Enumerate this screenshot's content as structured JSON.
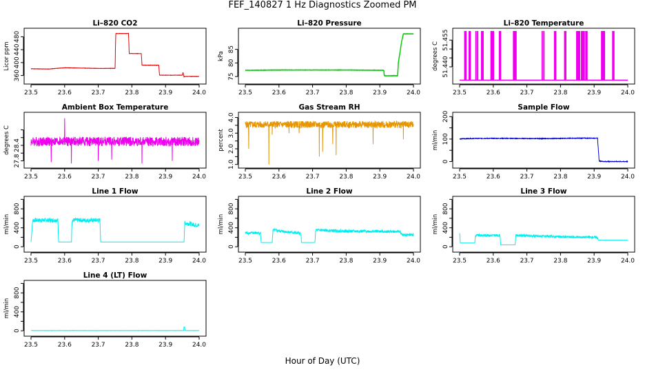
{
  "figure": {
    "title": "FEF_140827  1 Hz Diagnostics Zoomed PM",
    "xlabel": "Hour of Day (UTC)"
  },
  "chart_data": [
    {
      "type": "line",
      "title": "Li–820 CO2",
      "xlabel": "",
      "ylabel": "Licor ppm",
      "xlim": [
        23.5,
        24.0
      ],
      "ylim": [
        340,
        500
      ],
      "xticks": [
        "23.5",
        "23.6",
        "23.7",
        "23.8",
        "23.9",
        "24.0"
      ],
      "yticks": [
        "360",
        "400",
        "440",
        "480"
      ],
      "color": "#dd0000",
      "noise": 0.5,
      "seed": 1,
      "series": [
        {
          "x": [
            23.5,
            23.55,
            23.6,
            23.65,
            23.7,
            23.75,
            23.752,
            23.79,
            23.792,
            23.828,
            23.83,
            23.88,
            23.882,
            23.95,
            23.952,
            23.955,
            23.957,
            24.0
          ],
          "y": [
            381,
            380,
            384,
            383,
            382,
            382,
            490,
            490,
            428,
            428,
            392,
            392,
            361,
            361,
            370,
            356,
            357,
            357
          ]
        }
      ]
    },
    {
      "type": "line",
      "title": "Li–820 Pressure",
      "xlabel": "",
      "ylabel": "kPa",
      "xlim": [
        23.5,
        24.0
      ],
      "ylim": [
        73,
        92
      ],
      "xticks": [
        "23.5",
        "23.6",
        "23.7",
        "23.8",
        "23.9",
        "24.0"
      ],
      "yticks": [
        "75",
        "80",
        "85"
      ],
      "color": "#00cc00",
      "noise": 0.05,
      "seed": 2,
      "series": [
        {
          "x": [
            23.5,
            23.6,
            23.7,
            23.8,
            23.912,
            23.913,
            23.953,
            23.955,
            23.96,
            23.965,
            23.97,
            24.0
          ],
          "y": [
            77.3,
            77.4,
            77.4,
            77.4,
            77.3,
            75.3,
            75.3,
            80.0,
            84.0,
            88.0,
            90.7,
            90.7
          ]
        }
      ]
    },
    {
      "type": "line",
      "title": "Li–820 Temperature",
      "xlabel": "",
      "ylabel": "degrees C",
      "xlim": [
        23.5,
        24.0
      ],
      "ylim": [
        51.4315,
        51.4605
      ],
      "xticks": [
        "23.5",
        "23.6",
        "23.7",
        "23.8",
        "23.9",
        "24.0"
      ],
      "yticks": [
        "51.440",
        "51.455"
      ],
      "yticks_minor": [
        "51.445",
        "51.450"
      ],
      "color": "#ee00ee",
      "noise": 0,
      "seed": 3,
      "base": 51.4325,
      "spike": 51.4598,
      "spikes_x": [
        23.515,
        23.518,
        23.528,
        23.531,
        23.548,
        23.553,
        23.565,
        23.569,
        23.593,
        23.596,
        23.6,
        23.618,
        23.621,
        23.66,
        23.664,
        23.667,
        23.745,
        23.75,
        23.782,
        23.785,
        23.812,
        23.815,
        23.848,
        23.852,
        23.856,
        23.862,
        23.866,
        23.87,
        23.875,
        23.878,
        23.922,
        23.926,
        23.93,
        23.955,
        23.958
      ]
    },
    {
      "type": "line",
      "title": "Ambient Box Temperature",
      "xlabel": "",
      "ylabel": "degrees C",
      "xlim": [
        23.5,
        24.0
      ],
      "ylim": [
        27.6,
        29.6
      ],
      "xticks": [
        "23.5",
        "23.6",
        "23.7",
        "23.8",
        "23.9",
        "24.0"
      ],
      "yticks": [
        "27.8",
        "28.4"
      ],
      "yticks_minor": [
        "28.1",
        "28.7",
        "29.0"
      ],
      "color": "#ee00ee",
      "noise": 0.18,
      "seed": 4,
      "series": [
        {
          "x": [
            23.5,
            24.0
          ],
          "y": [
            28.55,
            28.55
          ]
        }
      ],
      "dips": [
        [
          23.56,
          27.75
        ],
        [
          23.6,
          29.45
        ],
        [
          23.62,
          27.7
        ],
        [
          23.7,
          27.8
        ],
        [
          23.74,
          27.85
        ],
        [
          23.83,
          27.7
        ],
        [
          23.92,
          27.8
        ]
      ]
    },
    {
      "type": "line",
      "title": "Gas Stream RH",
      "xlabel": "",
      "ylabel": "percent",
      "xlim": [
        23.5,
        24.0
      ],
      "ylim": [
        0.9,
        4.2
      ],
      "xticks": [
        "23.5",
        "23.6",
        "23.7",
        "23.8",
        "23.9",
        "24.0"
      ],
      "yticks": [
        "1.0",
        "2.0",
        "3.0",
        "4.0"
      ],
      "yticks_minor": [
        "1.5",
        "2.5",
        "3.5"
      ],
      "color": "#e69500",
      "noise": 0.22,
      "seed": 5,
      "series": [
        {
          "x": [
            23.5,
            24.0
          ],
          "y": [
            3.55,
            3.55
          ]
        }
      ],
      "dips": [
        [
          23.51,
          2.0
        ],
        [
          23.57,
          1.0
        ],
        [
          23.58,
          2.9
        ],
        [
          23.63,
          3.0
        ],
        [
          23.66,
          3.0
        ],
        [
          23.72,
          1.5
        ],
        [
          23.73,
          1.8
        ],
        [
          23.76,
          2.3
        ],
        [
          23.77,
          1.6
        ],
        [
          23.88,
          2.3
        ],
        [
          23.97,
          2.6
        ]
      ]
    },
    {
      "type": "line",
      "title": "Sample Flow",
      "xlabel": "",
      "ylabel": "ml/min",
      "xlim": [
        23.5,
        24.0
      ],
      "ylim": [
        -20,
        210
      ],
      "xticks": [
        "23.5",
        "23.6",
        "23.7",
        "23.8",
        "23.9",
        "24.0"
      ],
      "yticks": [
        "0",
        "100",
        "200"
      ],
      "yticks_minor": [
        "50",
        "150"
      ],
      "color": "#0000cc",
      "noise": 1.5,
      "seed": 6,
      "series": [
        {
          "x": [
            23.5,
            23.55,
            23.65,
            23.75,
            23.85,
            23.91,
            23.915,
            23.93,
            24.0
          ],
          "y": [
            101,
            103,
            103,
            102,
            104,
            104,
            2,
            0,
            0
          ]
        }
      ]
    },
    {
      "type": "line",
      "title": "Line 1 Flow",
      "xlabel": "",
      "ylabel": "ml/min",
      "xlim": [
        23.5,
        24.0
      ],
      "ylim": [
        -70,
        1020
      ],
      "xticks": [
        "23.5",
        "23.6",
        "23.7",
        "23.8",
        "23.9",
        "24.0"
      ],
      "yticks": [
        "0",
        "400",
        "800"
      ],
      "yticks_minor": [
        "200",
        "600",
        "1000"
      ],
      "color": "#00eeee",
      "noise": 45,
      "seed": 7,
      "series": [
        {
          "x": [
            23.5,
            23.505,
            23.58,
            23.582,
            23.62,
            23.622,
            23.705,
            23.707,
            23.955,
            23.957,
            24.0
          ],
          "y": [
            100,
            560,
            560,
            100,
            100,
            560,
            560,
            100,
            100,
            500,
            450
          ]
        }
      ],
      "noise_off_below": 150
    },
    {
      "type": "line",
      "title": "Line 2 Flow",
      "xlabel": "",
      "ylabel": "ml/min",
      "xlim": [
        23.5,
        24.0
      ],
      "ylim": [
        -70,
        1020
      ],
      "xticks": [
        "23.5",
        "23.6",
        "23.7",
        "23.8",
        "23.9",
        "24.0"
      ],
      "yticks": [
        "0",
        "400",
        "800"
      ],
      "yticks_minor": [
        "200",
        "600",
        "1000"
      ],
      "color": "#00eeee",
      "noise": 30,
      "seed": 8,
      "series": [
        {
          "x": [
            23.5,
            23.545,
            23.547,
            23.58,
            23.582,
            23.665,
            23.667,
            23.707,
            23.709,
            23.8,
            23.96,
            23.965,
            24.0
          ],
          "y": [
            290,
            290,
            90,
            90,
            350,
            280,
            90,
            90,
            350,
            330,
            320,
            250,
            250
          ]
        }
      ],
      "noise_off_below": 150
    },
    {
      "type": "line",
      "title": "Line 3 Flow",
      "xlabel": "",
      "ylabel": "ml/min",
      "xlim": [
        23.5,
        24.0
      ],
      "ylim": [
        -70,
        1020
      ],
      "xticks": [
        "23.5",
        "23.6",
        "23.7",
        "23.8",
        "23.9",
        "24.0"
      ],
      "yticks": [
        "0",
        "400",
        "800"
      ],
      "yticks_minor": [
        "200",
        "600",
        "1000"
      ],
      "color": "#00eeee",
      "noise": 25,
      "seed": 9,
      "series": [
        {
          "x": [
            23.5,
            23.502,
            23.503,
            23.545,
            23.547,
            23.62,
            23.622,
            23.665,
            23.667,
            23.8,
            23.91,
            23.912,
            24.0
          ],
          "y": [
            300,
            80,
            80,
            80,
            240,
            240,
            40,
            40,
            240,
            210,
            200,
            140,
            140
          ]
        }
      ],
      "noise_off_below": 150
    },
    {
      "type": "line",
      "title": "Line 4 (LT) Flow",
      "xlabel": "",
      "ylabel": "ml/min",
      "xlim": [
        23.5,
        24.0
      ],
      "ylim": [
        -70,
        1020
      ],
      "xticks": [
        "23.5",
        "23.6",
        "23.7",
        "23.8",
        "23.9",
        "24.0"
      ],
      "yticks": [
        "0",
        "400",
        "800"
      ],
      "yticks_minor": [
        "200",
        "600",
        "1000"
      ],
      "color": "#00eeee",
      "noise": 2,
      "seed": 10,
      "series": [
        {
          "x": [
            23.5,
            23.954,
            23.955,
            23.957,
            23.958,
            24.0
          ],
          "y": [
            5,
            5,
            80,
            80,
            5,
            5
          ]
        }
      ]
    }
  ]
}
